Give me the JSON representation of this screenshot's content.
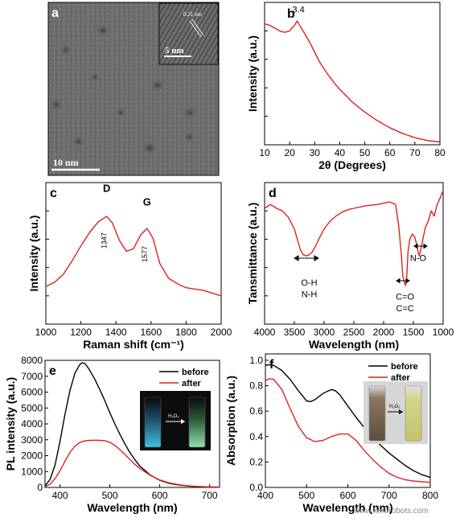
{
  "panels": {
    "a": {
      "label": "a",
      "scale_bar": "10 nm",
      "inset_scale": "5 nm",
      "inset_spacing": "0.21 nm"
    },
    "b": {
      "label": "b"
    },
    "c": {
      "label": "c"
    },
    "d": {
      "label": "d"
    },
    "e": {
      "label": "e",
      "inset_reagent": "H₂O₂"
    },
    "f": {
      "label": "f",
      "inset_reagent": "H₂O₂"
    }
  },
  "watermark": "www.kerbrobots.com",
  "colors": {
    "red": "#e02020",
    "black": "#000000"
  },
  "chart_data": [
    {
      "id": "b",
      "type": "line",
      "xlabel": "2θ (Degrees)",
      "ylabel": "Intensity (a.u.)",
      "xlim": [
        10,
        80
      ],
      "xticks": [
        10,
        20,
        30,
        40,
        50,
        60,
        70,
        80
      ],
      "annotations": [
        {
          "text": "3.4",
          "x": 23.5,
          "y": 0.93
        }
      ],
      "series": [
        {
          "color": "#e02020",
          "x": [
            10,
            12,
            14,
            16,
            18,
            20,
            22,
            23,
            24,
            26,
            28,
            30,
            32,
            35,
            38,
            40,
            45,
            50,
            55,
            60,
            65,
            70,
            75,
            80
          ],
          "y": [
            0.85,
            0.84,
            0.82,
            0.8,
            0.79,
            0.8,
            0.84,
            0.87,
            0.84,
            0.78,
            0.72,
            0.65,
            0.58,
            0.5,
            0.43,
            0.39,
            0.3,
            0.23,
            0.17,
            0.12,
            0.08,
            0.05,
            0.03,
            0.02
          ]
        }
      ]
    },
    {
      "id": "c",
      "type": "line",
      "xlabel": "Raman shift (cm⁻¹)",
      "ylabel": "Intensity (a.u.)",
      "xlim": [
        1000,
        2000
      ],
      "xticks": [
        1000,
        1200,
        1400,
        1600,
        1800,
        2000
      ],
      "annotations": [
        {
          "text": "D",
          "x": 1347,
          "y": 0.98,
          "bold": true
        },
        {
          "text": "1347",
          "x": 1347,
          "y": 0.62,
          "rotate": true
        },
        {
          "text": "G",
          "x": 1577,
          "y": 0.88,
          "bold": true
        },
        {
          "text": "1577",
          "x": 1577,
          "y": 0.52,
          "rotate": true
        }
      ],
      "series": [
        {
          "color": "#e02020",
          "x": [
            1000,
            1050,
            1100,
            1150,
            1200,
            1250,
            1300,
            1347,
            1380,
            1420,
            1460,
            1500,
            1540,
            1577,
            1610,
            1650,
            1700,
            1750,
            1800,
            1850,
            1900,
            1950,
            2000
          ],
          "y": [
            0.28,
            0.31,
            0.37,
            0.47,
            0.58,
            0.68,
            0.76,
            0.8,
            0.75,
            0.62,
            0.54,
            0.56,
            0.66,
            0.71,
            0.64,
            0.45,
            0.34,
            0.3,
            0.27,
            0.26,
            0.25,
            0.23,
            0.21
          ]
        }
      ]
    },
    {
      "id": "d",
      "type": "line",
      "xlabel": "Wavelength (nm)",
      "ylabel": "Tansmittance (a.u.)",
      "xlim": [
        4000,
        1000
      ],
      "xticks": [
        4000,
        3500,
        3000,
        2500,
        2000,
        1500,
        1000
      ],
      "annotations": [
        {
          "text": "O-H",
          "x": 3250,
          "y": 0.22
        },
        {
          "text": "N-H",
          "x": 3250,
          "y": 0.13
        },
        {
          "text": "C=O",
          "x": 1640,
          "y": 0.11
        },
        {
          "text": "C=C",
          "x": 1640,
          "y": 0.02
        },
        {
          "text": "N-O",
          "x": 1420,
          "y": 0.41
        }
      ],
      "series": [
        {
          "color": "#e02020",
          "x": [
            4000,
            3900,
            3800,
            3700,
            3600,
            3500,
            3450,
            3400,
            3350,
            3300,
            3250,
            3200,
            3150,
            3100,
            3000,
            2900,
            2800,
            2700,
            2600,
            2500,
            2300,
            2100,
            2000,
            1900,
            1800,
            1750,
            1700,
            1680,
            1650,
            1630,
            1610,
            1590,
            1560,
            1520,
            1480,
            1450,
            1420,
            1400,
            1380,
            1340,
            1300,
            1250,
            1200,
            1150,
            1100,
            1050,
            1000
          ],
          "y": [
            0.82,
            0.85,
            0.82,
            0.8,
            0.75,
            0.66,
            0.58,
            0.5,
            0.46,
            0.45,
            0.46,
            0.48,
            0.52,
            0.57,
            0.66,
            0.72,
            0.76,
            0.79,
            0.81,
            0.82,
            0.84,
            0.85,
            0.86,
            0.87,
            0.85,
            0.7,
            0.45,
            0.3,
            0.24,
            0.22,
            0.3,
            0.48,
            0.58,
            0.62,
            0.6,
            0.55,
            0.48,
            0.45,
            0.49,
            0.58,
            0.67,
            0.72,
            0.8,
            0.76,
            0.85,
            0.9,
            0.96
          ]
        }
      ]
    },
    {
      "id": "e",
      "type": "line",
      "xlabel": "Wavelength (nm)",
      "ylabel": "PL intensity (a.u.)",
      "xlim": [
        370,
        720
      ],
      "ylim": [
        0,
        8000
      ],
      "xticks": [
        400,
        500,
        600,
        700
      ],
      "yticks": [
        0,
        1000,
        2000,
        3000,
        4000,
        5000,
        6000,
        7000,
        8000
      ],
      "legend": "top-right",
      "series": [
        {
          "name": "before",
          "color": "#000000",
          "x": [
            370,
            380,
            390,
            400,
            410,
            420,
            430,
            440,
            445,
            450,
            455,
            460,
            470,
            480,
            490,
            500,
            510,
            520,
            530,
            540,
            550,
            560,
            580,
            600,
            620,
            640,
            660,
            680,
            700,
            720
          ],
          "y": [
            100,
            500,
            1400,
            2900,
            4600,
            6100,
            7200,
            7750,
            7850,
            7800,
            7600,
            7350,
            6800,
            6150,
            5450,
            4700,
            4000,
            3350,
            2750,
            2200,
            1750,
            1350,
            800,
            450,
            250,
            140,
            80,
            50,
            30,
            20
          ]
        },
        {
          "name": "after",
          "color": "#e02020",
          "x": [
            370,
            380,
            390,
            400,
            410,
            420,
            430,
            440,
            450,
            460,
            470,
            480,
            490,
            500,
            510,
            520,
            530,
            540,
            550,
            560,
            580,
            600,
            620,
            640,
            660,
            680,
            700,
            720
          ],
          "y": [
            50,
            200,
            550,
            1050,
            1650,
            2200,
            2600,
            2830,
            2930,
            2960,
            2970,
            2960,
            2940,
            2840,
            2650,
            2380,
            2080,
            1770,
            1460,
            1200,
            780,
            470,
            280,
            160,
            90,
            50,
            30,
            20
          ]
        }
      ]
    },
    {
      "id": "f",
      "type": "line",
      "xlabel": "Wavelength (nm)",
      "ylabel": "Absorption (a.u.)",
      "xlim": [
        400,
        800
      ],
      "ylim": [
        0,
        1.05
      ],
      "xticks": [
        400,
        500,
        600,
        700,
        800
      ],
      "yticks": [
        0.0,
        0.2,
        0.4,
        0.6,
        0.8,
        1.0
      ],
      "legend": "top-right",
      "series": [
        {
          "name": "before",
          "color": "#000000",
          "x": [
            400,
            410,
            420,
            440,
            460,
            480,
            500,
            510,
            520,
            540,
            560,
            570,
            580,
            600,
            620,
            640,
            660,
            680,
            700,
            720,
            740,
            760,
            780,
            800
          ],
          "y": [
            0.96,
            0.965,
            0.96,
            0.92,
            0.85,
            0.76,
            0.68,
            0.675,
            0.69,
            0.74,
            0.77,
            0.76,
            0.73,
            0.64,
            0.55,
            0.47,
            0.39,
            0.33,
            0.27,
            0.22,
            0.17,
            0.13,
            0.1,
            0.08
          ]
        },
        {
          "name": "after",
          "color": "#e02020",
          "x": [
            400,
            410,
            420,
            440,
            460,
            480,
            500,
            520,
            540,
            560,
            580,
            600,
            620,
            640,
            660,
            680,
            700,
            720,
            740,
            760,
            780,
            800
          ],
          "y": [
            0.84,
            0.855,
            0.85,
            0.77,
            0.62,
            0.48,
            0.39,
            0.36,
            0.37,
            0.4,
            0.42,
            0.42,
            0.37,
            0.29,
            0.22,
            0.16,
            0.11,
            0.08,
            0.06,
            0.05,
            0.045,
            0.04
          ]
        }
      ]
    }
  ]
}
